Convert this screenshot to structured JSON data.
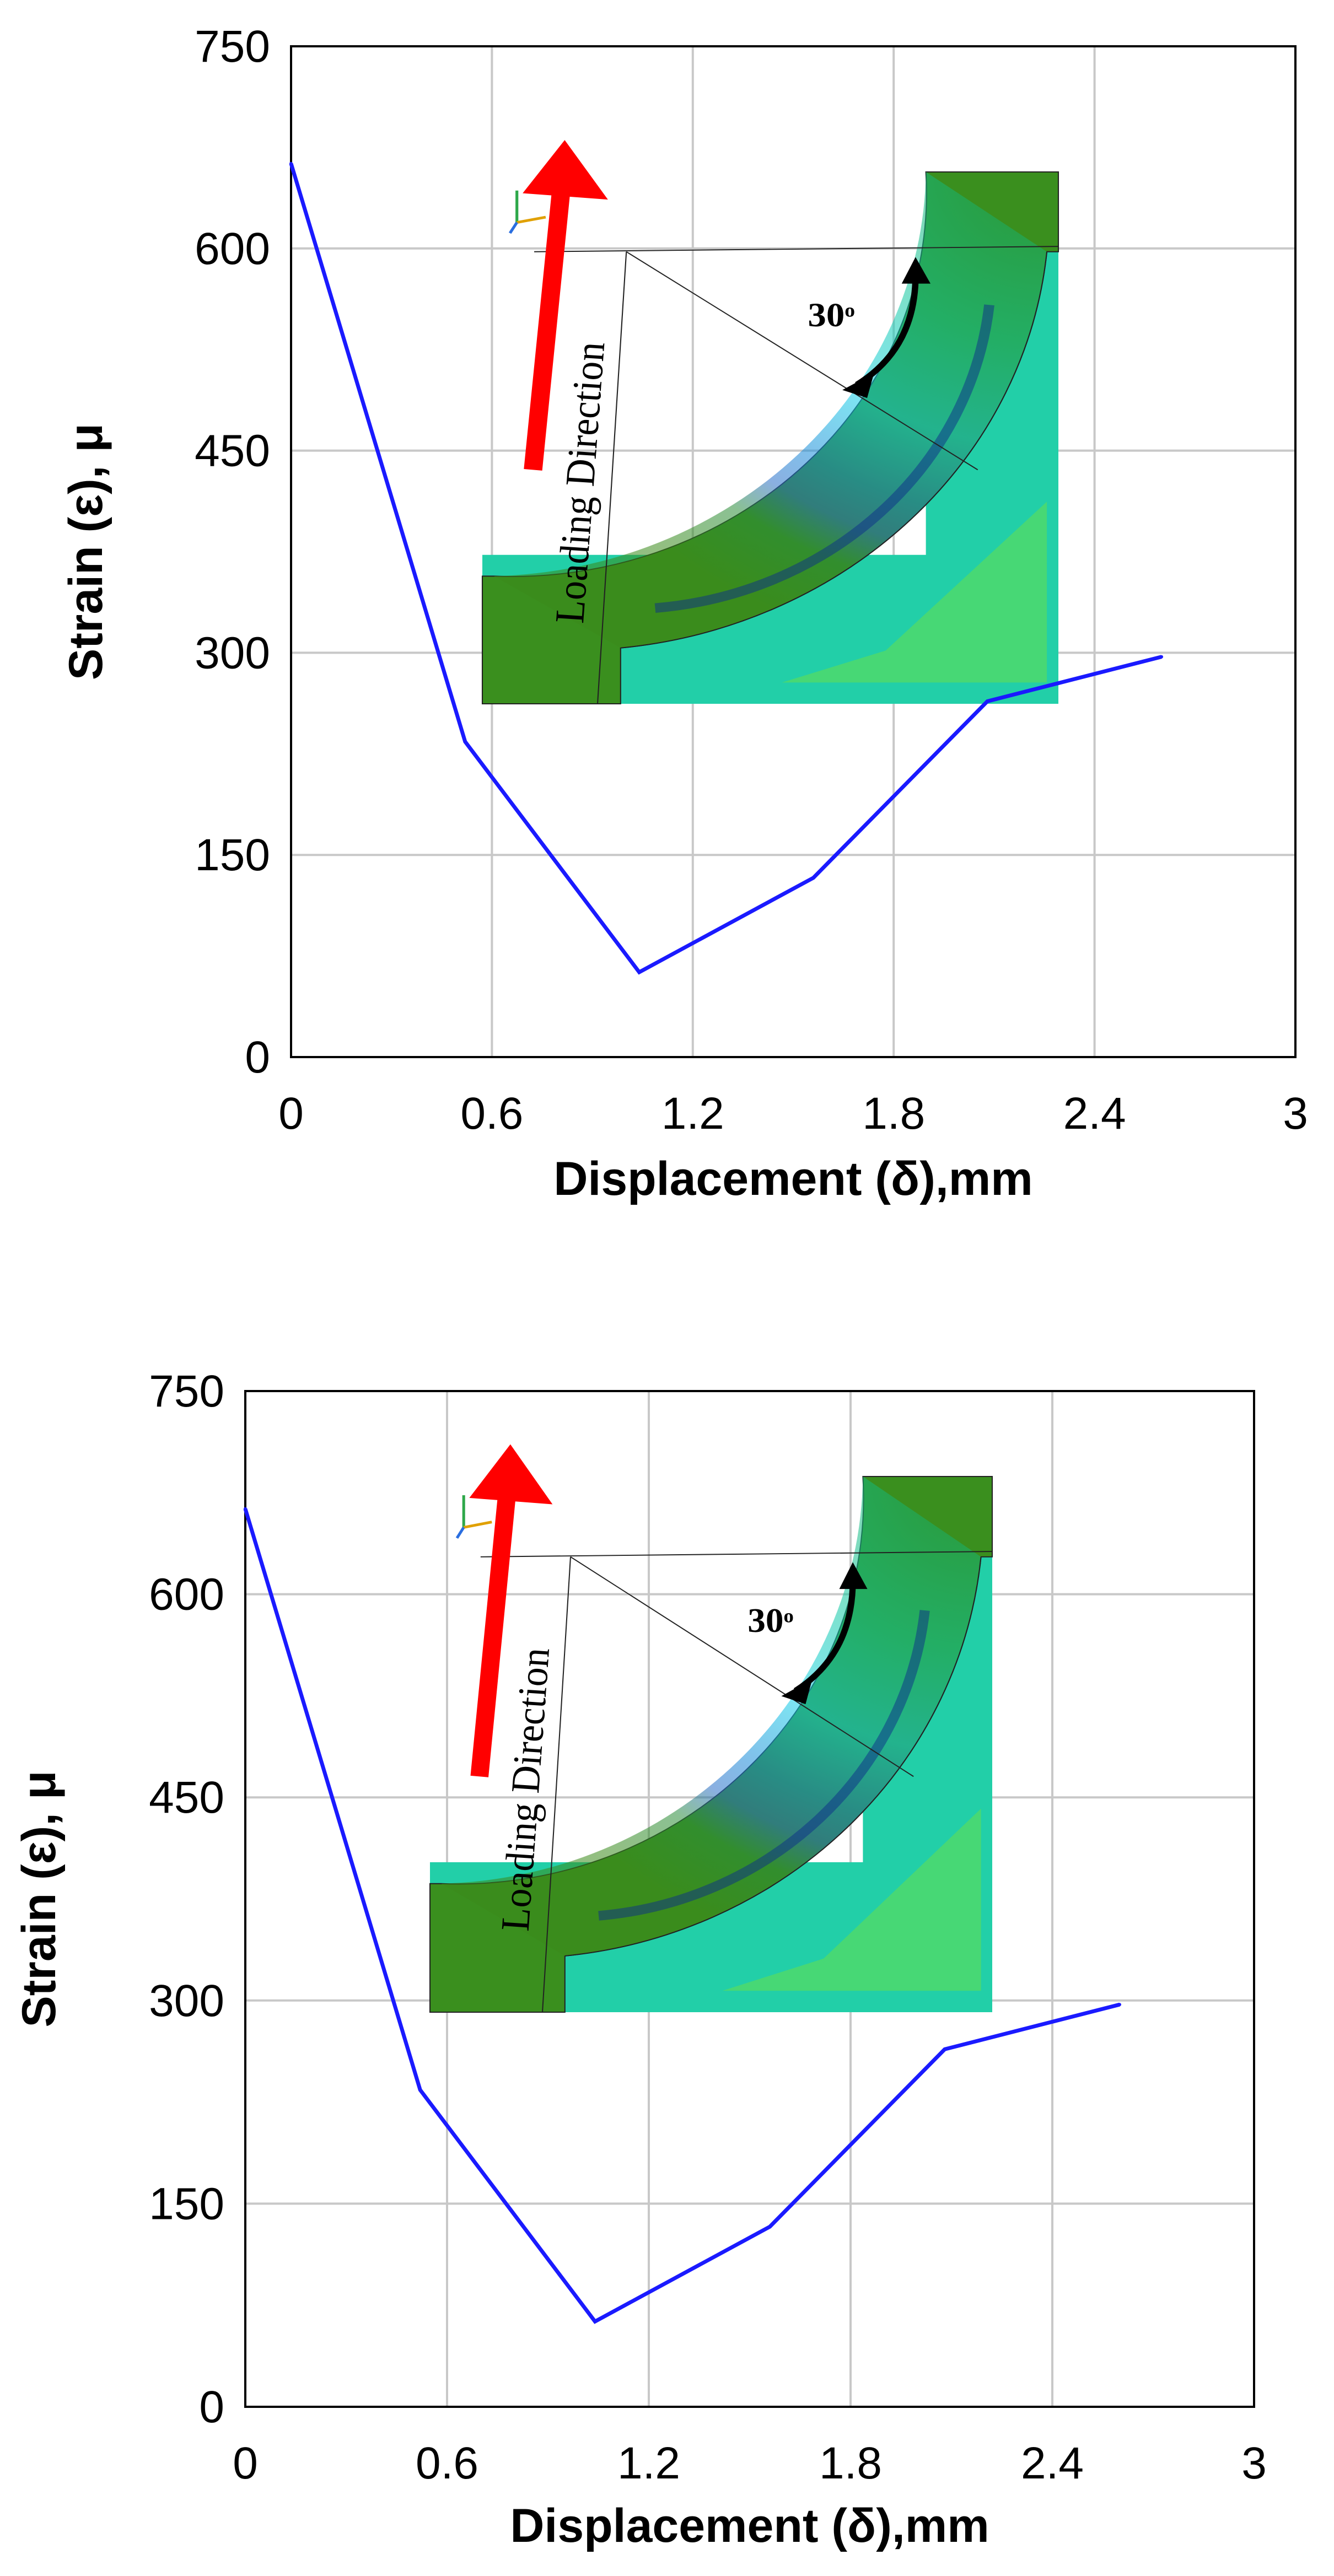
{
  "chart_data": [
    {
      "type": "line",
      "xlabel": "Displacement (δ),mm",
      "ylabel": "Strain (ε), μ",
      "xlim": [
        0,
        3
      ],
      "ylim": [
        0,
        750
      ],
      "xticks": [
        "0",
        "0.6",
        "1.2",
        "1.8",
        "2.4",
        "3"
      ],
      "yticks": [
        "0",
        "150",
        "300",
        "450",
        "600",
        "750"
      ],
      "grid": true,
      "series": [
        {
          "color": "#1a1aff",
          "x": [
            0,
            0.52,
            1.04,
            1.56,
            2.08,
            2.6
          ],
          "y": [
            663,
            234,
            63,
            133,
            264,
            297
          ]
        }
      ],
      "inset": {
        "direction_label": "Loading Direction",
        "angle_label": "30",
        "angle_unit": "o",
        "arrow_color": "#ff0000"
      }
    },
    {
      "type": "line",
      "xlabel": "Displacement (δ),mm",
      "ylabel": "Strain (ε), μ",
      "xlim": [
        0,
        3
      ],
      "ylim": [
        0,
        750
      ],
      "xticks": [
        "0",
        "0.6",
        "1.2",
        "1.8",
        "2.4",
        "3"
      ],
      "yticks": [
        "0",
        "150",
        "300",
        "450",
        "600",
        "750"
      ],
      "grid": true,
      "series": [
        {
          "color": "#1a1aff",
          "x": [
            0,
            0.52,
            1.04,
            1.56,
            2.08,
            2.6
          ],
          "y": [
            663,
            234,
            63,
            133,
            264,
            297
          ]
        }
      ],
      "inset": {
        "direction_label": "Loading Direction",
        "angle_label": "30",
        "angle_unit": "o",
        "arrow_color": "#ff0000"
      }
    }
  ]
}
